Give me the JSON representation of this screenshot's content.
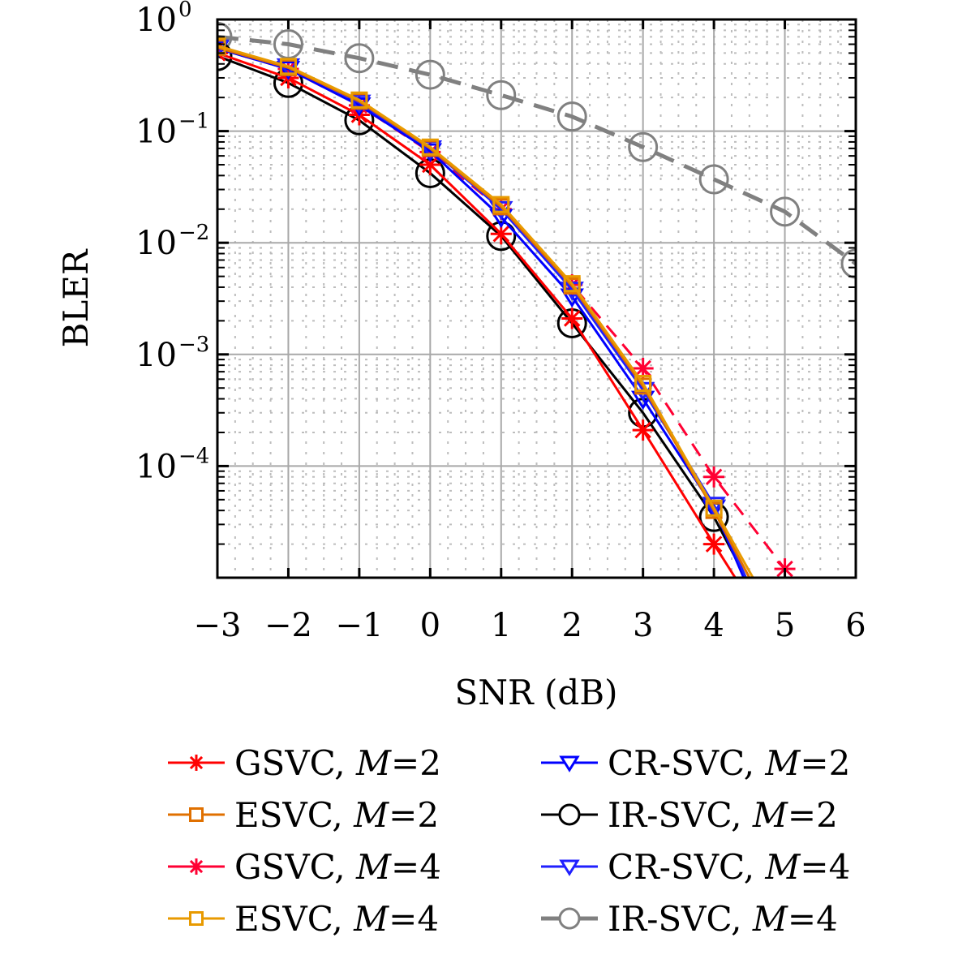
{
  "chart_data": {
    "type": "line",
    "title": "",
    "xlabel": "SNR (dB)",
    "ylabel": "BLER",
    "xscale": "linear",
    "yscale": "log",
    "xlim": [
      -3,
      6
    ],
    "ylim": [
      1e-05,
      1
    ],
    "grid": true,
    "minor_grid": true,
    "legend_position": "bottom",
    "x_ticks": [
      -3,
      -2,
      -1,
      0,
      1,
      2,
      3,
      4,
      5,
      6
    ],
    "x_tick_labels": [
      "−3",
      "−2",
      "−1",
      "0",
      "1",
      "2",
      "3",
      "4",
      "5",
      "6"
    ],
    "y_ticks": [
      1,
      0.1,
      0.01,
      0.001,
      0.0001
    ],
    "y_tick_labels": [
      {
        "base": "10",
        "exp": "0"
      },
      {
        "base": "10",
        "exp": "−1"
      },
      {
        "base": "10",
        "exp": "−2"
      },
      {
        "base": "10",
        "exp": "−3"
      },
      {
        "base": "10",
        "exp": "−4"
      }
    ],
    "series": [
      {
        "name": "GSVC, M=2",
        "scheme": "GSVC",
        "m": "2",
        "color": "#ff0000",
        "dash": "solid",
        "marker": "asterisk",
        "x": [
          -3,
          -2,
          -1,
          0,
          1,
          2,
          3,
          4,
          4.3
        ],
        "y": [
          0.5,
          0.3,
          0.14,
          0.05,
          0.012,
          0.0021,
          0.00021,
          2e-05,
          1e-05
        ]
      },
      {
        "name": "ESVC, M=2",
        "scheme": "ESVC",
        "m": "2",
        "color": "#e07000",
        "dash": "solid",
        "marker": "square",
        "x": [
          -3,
          -2,
          -1,
          0,
          1,
          2,
          3,
          4,
          4.5
        ],
        "y": [
          0.56,
          0.37,
          0.185,
          0.07,
          0.021,
          0.0041,
          0.00052,
          4e-05,
          1e-05
        ]
      },
      {
        "name": "GSVC, M=4",
        "scheme": "GSVC",
        "m": "4",
        "color": "#ff0033",
        "dash": "dashed",
        "marker": "asterisk",
        "x": [
          -3,
          -2,
          -1,
          0,
          1,
          2,
          3,
          4,
          5
        ],
        "y": [
          0.55,
          0.36,
          0.17,
          0.065,
          0.02,
          0.0042,
          0.00075,
          8e-05,
          1.2e-05
        ]
      },
      {
        "name": "ESVC, M=4",
        "scheme": "ESVC",
        "m": "4",
        "color": "#e89a00",
        "dash": "solid",
        "marker": "square",
        "x": [
          -3,
          -2,
          -1,
          0,
          1,
          2,
          3,
          4,
          4.55
        ],
        "y": [
          0.58,
          0.38,
          0.19,
          0.072,
          0.022,
          0.0043,
          0.00055,
          4.2e-05,
          1e-05
        ]
      },
      {
        "name": "CR-SVC, M=2",
        "scheme": "CR-SVC",
        "m": "2",
        "color": "#0000ff",
        "dash": "solid",
        "marker": "triangle-down",
        "x": [
          -3,
          -2,
          -1,
          0,
          1,
          2,
          3,
          4,
          4.42
        ],
        "y": [
          0.55,
          0.36,
          0.17,
          0.066,
          0.017,
          0.0033,
          0.0004,
          4.2e-05,
          1e-05
        ]
      },
      {
        "name": "IR-SVC, M=2",
        "scheme": "IR-SVC",
        "m": "2",
        "color": "#000000",
        "dash": "solid",
        "marker": "circle",
        "x": [
          -3,
          -2,
          -1,
          0,
          1,
          2,
          3,
          4,
          4.45
        ],
        "y": [
          0.47,
          0.27,
          0.125,
          0.042,
          0.0115,
          0.0019,
          0.0003,
          3.5e-05,
          1e-05
        ]
      },
      {
        "name": "CR-SVC, M=4",
        "scheme": "CR-SVC",
        "m": "4",
        "color": "#2020ff",
        "dash": "solid",
        "marker": "triangle-down",
        "x": [
          -3,
          -2,
          -1,
          0,
          1,
          2,
          3,
          4,
          4.45
        ],
        "y": [
          0.56,
          0.38,
          0.18,
          0.07,
          0.02,
          0.0038,
          0.00048,
          4.5e-05,
          1e-05
        ]
      },
      {
        "name": "IR-SVC, M=4",
        "scheme": "IR-SVC",
        "m": "4",
        "color": "#808080",
        "dash": "dashed",
        "marker": "circle",
        "x": [
          -3,
          -2,
          -1,
          0,
          1,
          2,
          3,
          4,
          5,
          6
        ],
        "y": [
          0.7,
          0.6,
          0.45,
          0.32,
          0.21,
          0.135,
          0.072,
          0.037,
          0.019,
          0.0065
        ]
      }
    ]
  }
}
